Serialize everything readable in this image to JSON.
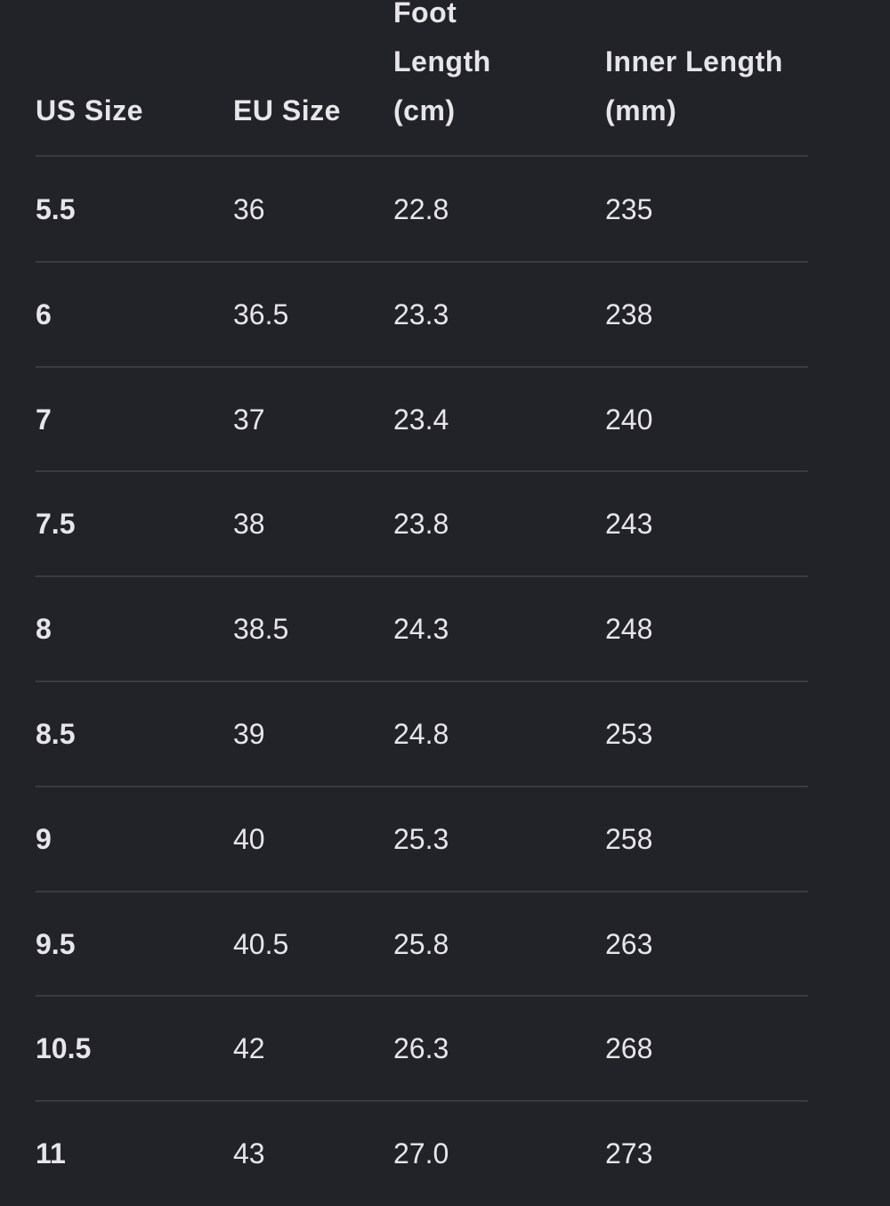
{
  "table": {
    "headers": [
      "US Size",
      "EU Size",
      "Foot Length (cm)",
      "Inner Length (mm)"
    ],
    "rows": [
      [
        "5.5",
        "36",
        "22.8",
        "235"
      ],
      [
        "6",
        "36.5",
        "23.3",
        "238"
      ],
      [
        "7",
        "37",
        "23.4",
        "240"
      ],
      [
        "7.5",
        "38",
        "23.8",
        "243"
      ],
      [
        "8",
        "38.5",
        "24.3",
        "248"
      ],
      [
        "8.5",
        "39",
        "24.8",
        "253"
      ],
      [
        "9",
        "40",
        "25.3",
        "258"
      ],
      [
        "9.5",
        "40.5",
        "25.8",
        "263"
      ],
      [
        "10.5",
        "42",
        "26.3",
        "268"
      ],
      [
        "11",
        "43",
        "27.0",
        "273"
      ]
    ]
  }
}
